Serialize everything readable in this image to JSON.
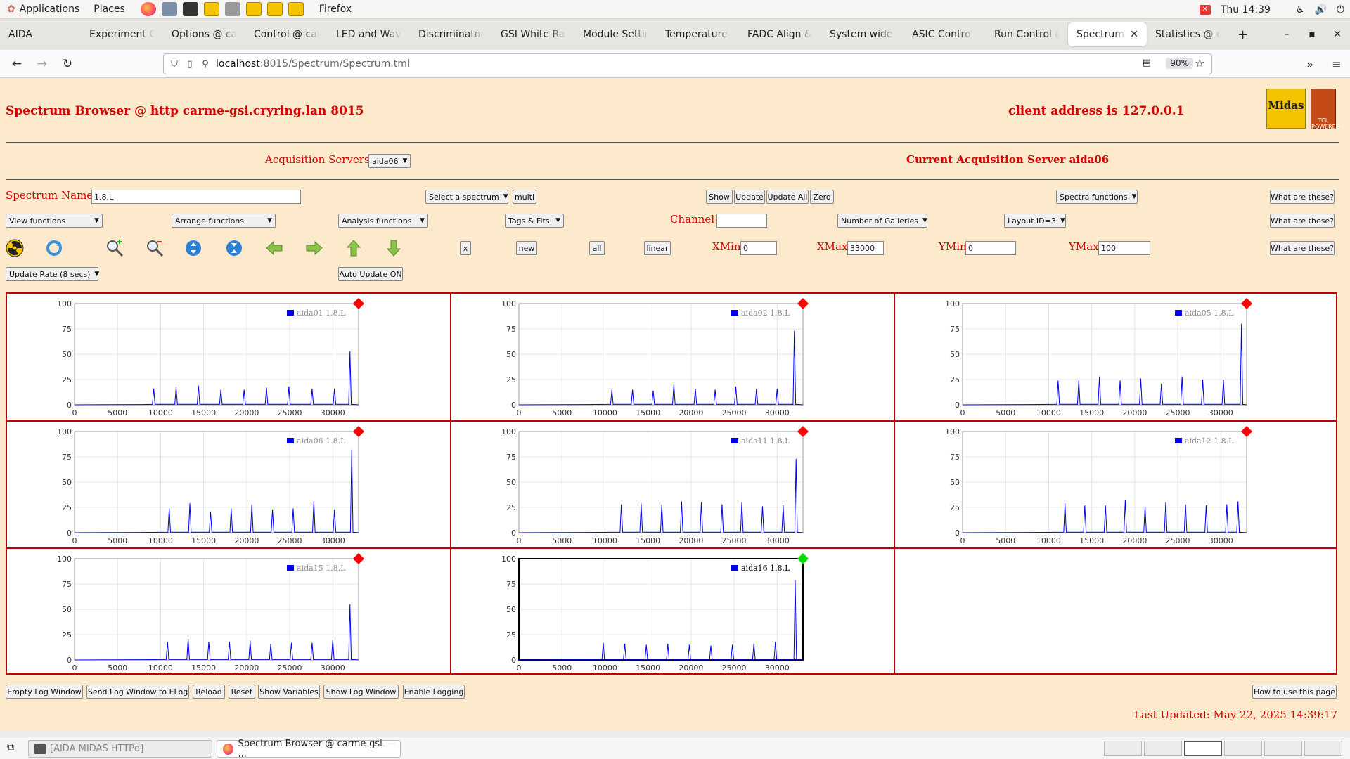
{
  "system_bar": {
    "applications": "Applications",
    "places": "Places",
    "app_name": "Firefox",
    "time": "Thu 14:39",
    "icons": [
      "firefox-icon",
      "files-icon",
      "terminal-icon",
      "midas-icon",
      "printer-icon",
      "midas-icon",
      "midas-icon",
      "midas-icon"
    ]
  },
  "tabs": [
    {
      "label": "AIDA",
      "fade": false
    },
    {
      "label": "Experiment Co",
      "fade": true
    },
    {
      "label": "Options @ car",
      "fade": true
    },
    {
      "label": "Control @ car",
      "fade": true
    },
    {
      "label": "LED and Wave",
      "fade": true
    },
    {
      "label": "Discriminator",
      "fade": true
    },
    {
      "label": "GSI White Rab",
      "fade": true
    },
    {
      "label": "Module Settin",
      "fade": true
    },
    {
      "label": "Temperature a",
      "fade": true
    },
    {
      "label": "FADC Align &",
      "fade": true
    },
    {
      "label": "System wide C",
      "fade": true
    },
    {
      "label": "ASIC Control",
      "fade": true
    },
    {
      "label": "Run Control @",
      "fade": true
    },
    {
      "label": "Spectrum Br",
      "fade": true,
      "active": true
    },
    {
      "label": "Statistics @ c",
      "fade": true
    }
  ],
  "nav": {
    "url_host": "localhost",
    "url_rest": ":8015/Spectrum/Spectrum.tml",
    "zoom": "90%"
  },
  "header": {
    "title": "Spectrum Browser @ http carme-gsi.cryring.lan 8015",
    "client": "client address is 127.0.0.1",
    "logo_text": "Midas",
    "logo2_text": "TCL POWERED"
  },
  "acq": {
    "label": "Acquisition Servers",
    "selected": "aida06",
    "current": "Current Acquisition Server aida06"
  },
  "controls": {
    "spectrum_name_label": "Spectrum Name:",
    "spectrum_name_value": "1.8.L",
    "select_spectrum": "Select a spectrum",
    "multi": "multi",
    "show": "Show",
    "update": "Update",
    "update_all": "Update All",
    "zero": "Zero",
    "spectra_functions": "Spectra functions",
    "what": "What are these?",
    "view_functions": "View functions",
    "arrange_functions": "Arrange functions",
    "analysis_functions": "Analysis functions",
    "tags_fits": "Tags & Fits",
    "channel_label": "Channel:",
    "galleries": "Number of Galleries",
    "layout": "Layout ID=3",
    "x": "x",
    "new": "new",
    "all": "all",
    "linear": "linear",
    "xmin_label": "XMin",
    "xmin": "0",
    "xmax_label": "XMax",
    "xmax": "33000",
    "ymin_label": "YMin",
    "ymin": "0",
    "ymax_label": "YMax",
    "ymax": "100",
    "update_rate": "Update Rate (8 secs)",
    "auto_update": "Auto Update ON"
  },
  "toolbar_icons": [
    "radiation-icon",
    "refresh-icon",
    "zoom-in-icon",
    "zoom-out-icon",
    "expand-vertical-icon",
    "compress-vertical-icon",
    "arrow-left-icon",
    "arrow-right-icon",
    "arrow-up-icon",
    "arrow-down-icon"
  ],
  "chart_data": [
    {
      "type": "line",
      "legend": "aida01 1.8.L",
      "xlim": [
        0,
        33000
      ],
      "ylim": [
        0,
        100
      ],
      "yticks": [
        0,
        25,
        50,
        75,
        100
      ],
      "xticks": [
        0,
        5000,
        10000,
        15000,
        20000,
        25000,
        30000
      ],
      "peaks": [
        [
          9200,
          16
        ],
        [
          11800,
          17
        ],
        [
          14400,
          19
        ],
        [
          17000,
          15
        ],
        [
          19700,
          15
        ],
        [
          22300,
          17
        ],
        [
          24900,
          18
        ],
        [
          27600,
          16
        ],
        [
          30200,
          16
        ],
        [
          32000,
          53
        ]
      ],
      "status": "red"
    },
    {
      "type": "line",
      "legend": "aida02 1.8.L",
      "xlim": [
        0,
        33000
      ],
      "ylim": [
        0,
        100
      ],
      "yticks": [
        0,
        25,
        50,
        75,
        100
      ],
      "xticks": [
        0,
        5000,
        10000,
        15000,
        20000,
        25000,
        30000
      ],
      "peaks": [
        [
          10800,
          15
        ],
        [
          13200,
          15
        ],
        [
          15600,
          14
        ],
        [
          18000,
          20
        ],
        [
          20500,
          16
        ],
        [
          22800,
          15
        ],
        [
          25200,
          18
        ],
        [
          27600,
          16
        ],
        [
          30000,
          16
        ],
        [
          32000,
          73
        ]
      ],
      "status": "red"
    },
    {
      "type": "line",
      "legend": "aida05 1.8.L",
      "xlim": [
        0,
        33000
      ],
      "ylim": [
        0,
        100
      ],
      "yticks": [
        0,
        25,
        50,
        75,
        100
      ],
      "xticks": [
        0,
        5000,
        10000,
        15000,
        20000,
        25000,
        30000
      ],
      "peaks": [
        [
          11100,
          24
        ],
        [
          13500,
          24
        ],
        [
          15900,
          28
        ],
        [
          18300,
          24
        ],
        [
          20700,
          26
        ],
        [
          23100,
          21
        ],
        [
          25500,
          28
        ],
        [
          27900,
          25
        ],
        [
          30300,
          25
        ],
        [
          32400,
          80
        ]
      ],
      "status": "red"
    },
    {
      "type": "line",
      "legend": "aida06 1.8.L",
      "xlim": [
        0,
        33000
      ],
      "ylim": [
        0,
        100
      ],
      "yticks": [
        0,
        25,
        50,
        75,
        100
      ],
      "xticks": [
        0,
        5000,
        10000,
        15000,
        20000,
        25000,
        30000
      ],
      "peaks": [
        [
          11000,
          24
        ],
        [
          13400,
          29
        ],
        [
          15800,
          21
        ],
        [
          18200,
          24
        ],
        [
          20600,
          28
        ],
        [
          23000,
          23
        ],
        [
          25400,
          24
        ],
        [
          27800,
          31
        ],
        [
          30200,
          23
        ],
        [
          32200,
          82
        ]
      ],
      "status": "red"
    },
    {
      "type": "line",
      "legend": "aida11 1.8.L",
      "xlim": [
        0,
        33000
      ],
      "ylim": [
        0,
        100
      ],
      "yticks": [
        0,
        25,
        50,
        75,
        100
      ],
      "xticks": [
        0,
        5000,
        10000,
        15000,
        20000,
        25000,
        30000
      ],
      "peaks": [
        [
          11900,
          28
        ],
        [
          14200,
          29
        ],
        [
          16600,
          28
        ],
        [
          18900,
          31
        ],
        [
          21200,
          30
        ],
        [
          23600,
          28
        ],
        [
          25900,
          30
        ],
        [
          28300,
          26
        ],
        [
          30700,
          27
        ],
        [
          32200,
          73
        ]
      ],
      "status": "red"
    },
    {
      "type": "line",
      "legend": "aida12 1.8.L",
      "xlim": [
        0,
        33000
      ],
      "ylim": [
        0,
        100
      ],
      "yticks": [
        0,
        25,
        50,
        75,
        100
      ],
      "xticks": [
        0,
        5000,
        10000,
        15000,
        20000,
        25000,
        30000
      ],
      "peaks": [
        [
          11900,
          29
        ],
        [
          14200,
          27
        ],
        [
          16600,
          27
        ],
        [
          18900,
          32
        ],
        [
          21200,
          26
        ],
        [
          23600,
          30
        ],
        [
          25900,
          28
        ],
        [
          28300,
          27
        ],
        [
          30700,
          28
        ],
        [
          32000,
          31
        ]
      ],
      "status": "red"
    },
    {
      "type": "line",
      "legend": "aida15 1.8.L",
      "xlim": [
        0,
        33000
      ],
      "ylim": [
        0,
        100
      ],
      "yticks": [
        0,
        25,
        50,
        75,
        100
      ],
      "xticks": [
        0,
        5000,
        10000,
        15000,
        20000,
        25000,
        30000
      ],
      "peaks": [
        [
          10800,
          18
        ],
        [
          13200,
          21
        ],
        [
          15600,
          18
        ],
        [
          18000,
          18
        ],
        [
          20400,
          19
        ],
        [
          22800,
          16
        ],
        [
          25200,
          17
        ],
        [
          27600,
          17
        ],
        [
          30000,
          20
        ],
        [
          32000,
          55
        ]
      ],
      "status": "red"
    },
    {
      "type": "line",
      "legend": "aida16 1.8.L",
      "xlim": [
        0,
        33000
      ],
      "ylim": [
        0,
        100
      ],
      "yticks": [
        0,
        25,
        50,
        75,
        100
      ],
      "xticks": [
        0,
        5000,
        10000,
        15000,
        20000,
        25000,
        30000
      ],
      "peaks": [
        [
          9800,
          17
        ],
        [
          12300,
          16
        ],
        [
          14800,
          15
        ],
        [
          17300,
          16
        ],
        [
          19800,
          15
        ],
        [
          22300,
          14
        ],
        [
          24800,
          15
        ],
        [
          27300,
          16
        ],
        [
          29800,
          18
        ],
        [
          32100,
          79
        ]
      ],
      "status": "green"
    }
  ],
  "bottom": {
    "empty_log": "Empty Log Window",
    "send_log": "Send Log Window to ELog",
    "reload": "Reload",
    "reset": "Reset",
    "show_vars": "Show Variables",
    "show_log": "Show Log Window",
    "enable_logging": "Enable Logging",
    "how_to": "How to use this page",
    "last_updated": "Last Updated: May 22, 2025 14:39:17"
  },
  "taskbar": {
    "task1": "[AIDA MIDAS HTTPd]",
    "task2": "Spectrum Browser @ carme-gsi — ..."
  },
  "colors": {
    "accent_red": "#d40000",
    "page_bg": "#fde9cc",
    "series": "#0000ee",
    "status_red": "#ff0000",
    "status_green": "#00e000"
  }
}
